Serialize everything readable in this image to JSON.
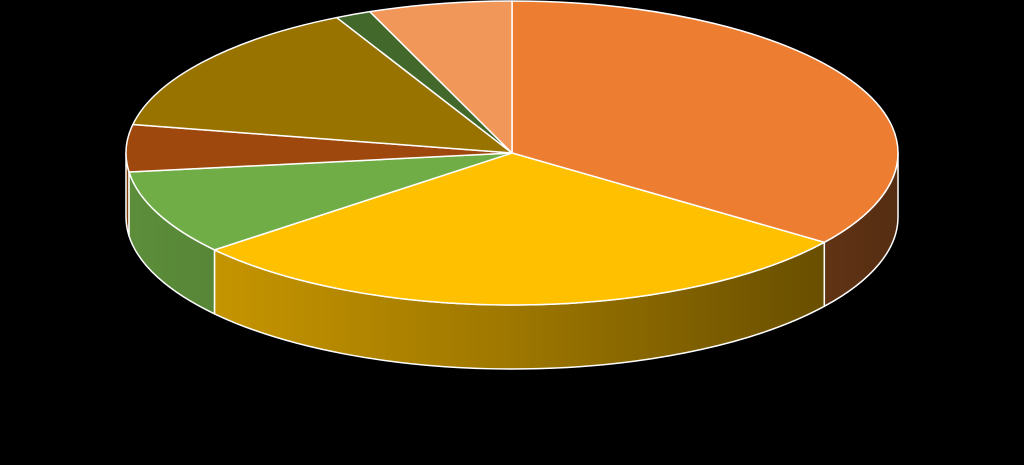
{
  "chart_data": {
    "type": "pie",
    "title": "",
    "style": "3d",
    "legend": "none",
    "data_labels": "none",
    "slices": [
      {
        "value": 35.0,
        "color": "#ED7D31"
      },
      {
        "value": 29.0,
        "color": "#FFC000"
      },
      {
        "value": 9.0,
        "color": "#70AD47"
      },
      {
        "value": 5.0,
        "color": "#9E480E"
      },
      {
        "value": 14.5,
        "color": "#997300"
      },
      {
        "value": 1.5,
        "color": "#43682B"
      },
      {
        "value": 6.0,
        "color": "#F1975A"
      }
    ]
  }
}
